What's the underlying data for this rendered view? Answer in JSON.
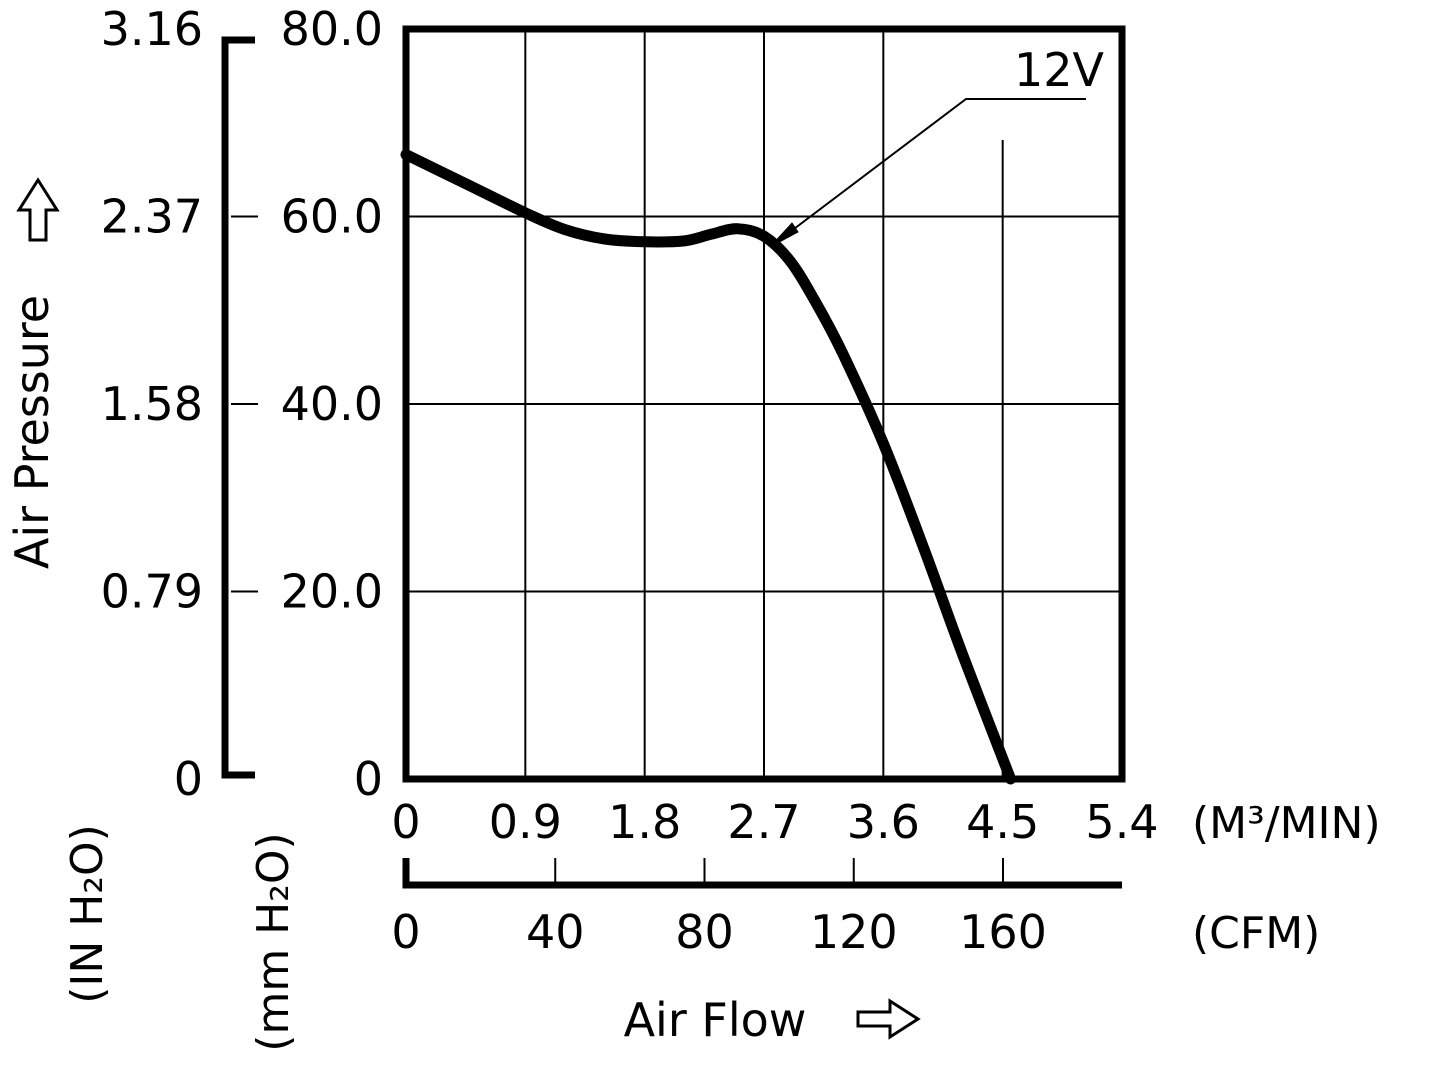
{
  "chart_data": {
    "type": "line",
    "ylabel": "Air Pressure",
    "xlabel": "Air Flow",
    "x_primary": {
      "unit_label": "(M³/MIN)",
      "ticks": [
        "0",
        "0.9",
        "1.8",
        "2.7",
        "3.6",
        "4.5",
        "5.4"
      ],
      "range": [
        0,
        5.4
      ]
    },
    "x_secondary": {
      "unit_label": "(CFM)",
      "ticks": [
        {
          "value": 0,
          "label": "0"
        },
        {
          "value": 40,
          "label": "40"
        },
        {
          "value": 80,
          "label": "80"
        },
        {
          "value": 120,
          "label": "120"
        },
        {
          "value": 160,
          "label": "160"
        }
      ]
    },
    "y_primary": {
      "unit_label": "(mm H₂O)",
      "ticks": [
        "0",
        "20.0",
        "40.0",
        "60.0",
        "80.0"
      ],
      "range": [
        0,
        80
      ]
    },
    "y_secondary": {
      "unit_label": "(IN H₂O)",
      "ticks": [
        "0",
        "0.79",
        "1.58",
        "2.37",
        "3.16"
      ]
    },
    "grid": true,
    "series": [
      {
        "name": "12V",
        "x_unit": "M3/MIN",
        "y_unit": "mm H2O",
        "points": [
          [
            0,
            66.6
          ],
          [
            0.45,
            63.5
          ],
          [
            0.9,
            60.4
          ],
          [
            1.2,
            58.6
          ],
          [
            1.5,
            57.6
          ],
          [
            1.8,
            57.3
          ],
          [
            2.1,
            57.4
          ],
          [
            2.3,
            58.1
          ],
          [
            2.5,
            58.7
          ],
          [
            2.7,
            57.9
          ],
          [
            2.9,
            55.2
          ],
          [
            3.1,
            50.6
          ],
          [
            3.3,
            45.2
          ],
          [
            3.6,
            35.8
          ],
          [
            3.9,
            24.8
          ],
          [
            4.2,
            13.2
          ],
          [
            4.56,
            0
          ]
        ]
      }
    ]
  }
}
